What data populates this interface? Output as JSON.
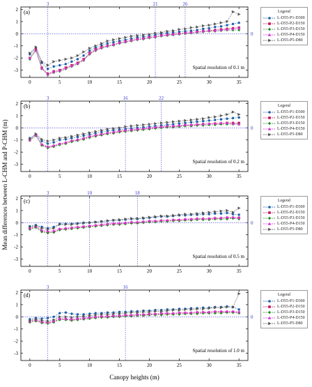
{
  "figure": {
    "ylabel": "Mean differences between L-CHM and P-CHM (m)",
    "xlabel": "Canopy heights (m)"
  },
  "colors": {
    "P1": "#1f5fa8",
    "P2": "#c4145a",
    "P3": "#228b22",
    "P4": "#d633d6",
    "P5": "#555555",
    "ref_line": "#3a3ad6"
  },
  "chart_data": [
    {
      "type": "line",
      "panel_label": "(a)",
      "annotation": "Spatial resolution of 0.1 m",
      "legend_title": "Legend",
      "vlines": [
        3,
        21,
        26
      ],
      "vline_labels": [
        "3",
        "21",
        "26"
      ],
      "hline_label": "0",
      "xlim": [
        -1.5,
        36.5
      ],
      "ylim": [
        -3.6,
        2.2
      ],
      "xticks": [
        0,
        5,
        10,
        15,
        20,
        25,
        30,
        35
      ],
      "yticks": [
        -3,
        -2,
        -1,
        0,
        1,
        2
      ],
      "x": [
        0,
        1,
        2,
        3,
        4,
        5,
        6,
        7,
        8,
        9,
        10,
        11,
        12,
        13,
        14,
        15,
        16,
        17,
        18,
        19,
        20,
        21,
        22,
        23,
        24,
        25,
        26,
        27,
        28,
        29,
        30,
        31,
        32,
        33,
        34,
        35
      ],
      "series": [
        {
          "name": "L-D55-P1-D300",
          "marker": "circle",
          "values": [
            -1.7,
            -1.2,
            -2.4,
            -2.9,
            -2.7,
            -2.6,
            -2.5,
            -2.3,
            -2.1,
            -1.8,
            -1.4,
            -1.15,
            -0.95,
            -0.8,
            -0.7,
            -0.6,
            -0.5,
            -0.4,
            -0.3,
            -0.25,
            -0.2,
            -0.1,
            0.0,
            0.05,
            0.1,
            0.15,
            0.2,
            0.25,
            0.3,
            0.4,
            0.45,
            0.55,
            0.6,
            0.7,
            0.8,
            0.9
          ]
        },
        {
          "name": "L-D55-P2-D150",
          "marker": "square",
          "values": [
            -2.0,
            -1.3,
            -2.8,
            -3.3,
            -3.1,
            -3.0,
            -2.8,
            -2.6,
            -2.4,
            -2.1,
            -1.6,
            -1.3,
            -1.1,
            -1.0,
            -0.9,
            -0.75,
            -0.65,
            -0.55,
            -0.45,
            -0.4,
            -0.3,
            -0.25,
            -0.15,
            -0.1,
            -0.05,
            0.0,
            0.05,
            0.1,
            0.15,
            0.2,
            0.25,
            0.3,
            0.35,
            0.4,
            0.45,
            0.5
          ]
        },
        {
          "name": "L-D55-P3-D150",
          "marker": "diamond",
          "values": [
            -2.1,
            -1.4,
            -2.9,
            -3.4,
            -3.2,
            -3.1,
            -2.9,
            -2.7,
            -2.5,
            -2.2,
            -1.7,
            -1.4,
            -1.2,
            -1.05,
            -0.95,
            -0.8,
            -0.7,
            -0.6,
            -0.5,
            -0.45,
            -0.35,
            -0.3,
            -0.2,
            -0.15,
            -0.1,
            -0.05,
            0.0,
            0.05,
            0.1,
            0.15,
            0.2,
            0.2,
            0.25,
            0.3,
            0.3,
            0.3
          ]
        },
        {
          "name": "L-D55-P4-D150",
          "marker": "triangle",
          "values": [
            -2.0,
            -1.35,
            -2.85,
            -3.35,
            -3.15,
            -3.05,
            -2.85,
            -2.65,
            -2.45,
            -2.15,
            -1.65,
            -1.35,
            -1.15,
            -1.0,
            -0.9,
            -0.75,
            -0.65,
            -0.55,
            -0.45,
            -0.4,
            -0.3,
            -0.25,
            -0.15,
            -0.1,
            -0.05,
            0.0,
            0.05,
            0.1,
            0.15,
            0.2,
            0.25,
            0.25,
            0.3,
            0.35,
            0.4,
            0.45
          ]
        },
        {
          "name": "L-D55-P5-D80",
          "marker": "tri-right",
          "values": [
            -1.6,
            -1.1,
            -2.3,
            -2.6,
            -2.3,
            -2.2,
            -2.1,
            -2.0,
            -1.8,
            -1.5,
            -1.2,
            -1.0,
            -0.8,
            -0.6,
            -0.5,
            -0.4,
            -0.3,
            -0.2,
            -0.15,
            -0.1,
            -0.05,
            0.05,
            0.1,
            0.2,
            0.25,
            0.35,
            0.4,
            0.5,
            0.55,
            0.65,
            0.7,
            0.8,
            0.9,
            1.0,
            1.8,
            1.6
          ]
        }
      ]
    },
    {
      "type": "line",
      "panel_label": "(b)",
      "annotation": "Spatial resolution of 0.2 m",
      "legend_title": "Legend",
      "vlines": [
        3,
        16,
        22
      ],
      "vline_labels": [
        "3",
        "16",
        "22"
      ],
      "hline_label": "0",
      "xlim": [
        -1.5,
        36.5
      ],
      "ylim": [
        -3.6,
        2.2
      ],
      "xticks": [
        0,
        5,
        10,
        15,
        20,
        25,
        30,
        35
      ],
      "yticks": [
        -3,
        -2,
        -1,
        0,
        1,
        2
      ],
      "x": [
        0,
        1,
        2,
        3,
        4,
        5,
        6,
        7,
        8,
        9,
        10,
        11,
        12,
        13,
        14,
        15,
        16,
        17,
        18,
        19,
        20,
        21,
        22,
        23,
        24,
        25,
        26,
        27,
        28,
        29,
        30,
        31,
        32,
        33,
        34,
        35
      ],
      "series": [
        {
          "name": "L-D55-P1-D300",
          "marker": "circle",
          "values": [
            -0.85,
            -0.55,
            -1.1,
            -1.3,
            -1.2,
            -1.0,
            -0.95,
            -0.85,
            -0.75,
            -0.65,
            -0.55,
            -0.45,
            -0.35,
            -0.25,
            -0.2,
            -0.15,
            -0.1,
            -0.05,
            0.0,
            0.05,
            0.1,
            0.15,
            0.2,
            0.25,
            0.3,
            0.35,
            0.4,
            0.45,
            0.5,
            0.55,
            0.6,
            0.65,
            0.7,
            0.75,
            0.8,
            0.85
          ]
        },
        {
          "name": "L-D55-P2-D150",
          "marker": "square",
          "values": [
            -1.0,
            -0.6,
            -1.4,
            -1.6,
            -1.5,
            -1.35,
            -1.25,
            -1.1,
            -1.0,
            -0.9,
            -0.75,
            -0.65,
            -0.55,
            -0.45,
            -0.4,
            -0.3,
            -0.25,
            -0.2,
            -0.15,
            -0.1,
            -0.05,
            0.0,
            0.05,
            0.1,
            0.1,
            0.15,
            0.2,
            0.2,
            0.25,
            0.3,
            0.3,
            0.35,
            0.35,
            0.4,
            0.4,
            0.4
          ]
        },
        {
          "name": "L-D55-P3-D150",
          "marker": "diamond",
          "values": [
            -1.05,
            -0.65,
            -1.45,
            -1.65,
            -1.55,
            -1.4,
            -1.3,
            -1.15,
            -1.05,
            -0.95,
            -0.8,
            -0.7,
            -0.6,
            -0.5,
            -0.45,
            -0.35,
            -0.3,
            -0.25,
            -0.2,
            -0.15,
            -0.1,
            -0.05,
            0.0,
            0.05,
            0.05,
            0.1,
            0.15,
            0.15,
            0.2,
            0.2,
            0.25,
            0.25,
            0.3,
            0.3,
            0.3,
            0.3
          ]
        },
        {
          "name": "L-D55-P4-D150",
          "marker": "triangle",
          "values": [
            -1.0,
            -0.6,
            -1.35,
            -1.55,
            -1.45,
            -1.3,
            -1.2,
            -1.05,
            -0.95,
            -0.85,
            -0.7,
            -0.6,
            -0.5,
            -0.4,
            -0.35,
            -0.25,
            -0.2,
            -0.15,
            -0.1,
            -0.05,
            0.0,
            0.05,
            0.1,
            0.15,
            0.15,
            0.2,
            0.25,
            0.25,
            0.3,
            0.3,
            0.35,
            0.35,
            0.4,
            0.4,
            0.35,
            0.3
          ]
        },
        {
          "name": "L-D55-P5-D80",
          "marker": "tri-right",
          "values": [
            -0.9,
            -0.5,
            -0.95,
            -1.1,
            -1.0,
            -0.85,
            -0.8,
            -0.7,
            -0.6,
            -0.5,
            -0.4,
            -0.3,
            -0.2,
            -0.1,
            -0.05,
            0.0,
            0.1,
            0.15,
            0.2,
            0.25,
            0.3,
            0.35,
            0.4,
            0.45,
            0.5,
            0.55,
            0.6,
            0.65,
            0.7,
            0.75,
            0.85,
            0.9,
            1.0,
            1.1,
            1.3,
            1.1
          ]
        }
      ]
    },
    {
      "type": "line",
      "panel_label": "(c)",
      "annotation": "Spatial resolution of 0.5 m",
      "legend_title": "Legend",
      "vlines": [
        3,
        10,
        18
      ],
      "vline_labels": [
        "3",
        "10",
        "18"
      ],
      "hline_label": "0",
      "xlim": [
        -1.5,
        36.5
      ],
      "ylim": [
        -3.6,
        2.2
      ],
      "xticks": [
        0,
        5,
        10,
        15,
        20,
        25,
        30,
        35
      ],
      "yticks": [
        -3,
        -2,
        -1,
        0,
        1,
        2
      ],
      "x": [
        0,
        1,
        2,
        3,
        4,
        5,
        6,
        7,
        8,
        9,
        10,
        11,
        12,
        13,
        14,
        15,
        16,
        17,
        18,
        19,
        20,
        21,
        22,
        23,
        24,
        25,
        26,
        27,
        28,
        29,
        30,
        31,
        32,
        33,
        34,
        35
      ],
      "series": [
        {
          "name": "L-D55-P1-D300",
          "marker": "circle",
          "values": [
            -0.3,
            -0.2,
            -0.35,
            -0.45,
            -0.35,
            -0.1,
            -0.1,
            -0.1,
            -0.05,
            0.0,
            0.0,
            0.05,
            0.1,
            0.15,
            0.2,
            0.2,
            0.25,
            0.3,
            0.3,
            0.35,
            0.4,
            0.45,
            0.5,
            0.5,
            0.55,
            0.6,
            0.6,
            0.65,
            0.65,
            0.7,
            0.7,
            0.75,
            0.75,
            0.8,
            0.7,
            0.65
          ]
        },
        {
          "name": "L-D55-P2-D150",
          "marker": "square",
          "values": [
            -0.5,
            -0.35,
            -0.7,
            -0.8,
            -0.75,
            -0.55,
            -0.5,
            -0.45,
            -0.4,
            -0.35,
            -0.3,
            -0.25,
            -0.2,
            -0.15,
            -0.1,
            -0.1,
            -0.05,
            0.0,
            0.0,
            0.05,
            0.1,
            0.1,
            0.15,
            0.15,
            0.2,
            0.2,
            0.25,
            0.25,
            0.3,
            0.3,
            0.3,
            0.35,
            0.35,
            0.4,
            0.4,
            0.4
          ]
        },
        {
          "name": "L-D55-P3-D150",
          "marker": "diamond",
          "values": [
            -0.55,
            -0.4,
            -0.75,
            -0.85,
            -0.8,
            -0.6,
            -0.55,
            -0.5,
            -0.45,
            -0.4,
            -0.35,
            -0.3,
            -0.25,
            -0.2,
            -0.15,
            -0.15,
            -0.1,
            -0.05,
            -0.05,
            0.0,
            0.05,
            0.05,
            0.1,
            0.1,
            0.15,
            0.15,
            0.2,
            0.2,
            0.25,
            0.25,
            0.25,
            0.3,
            0.3,
            0.3,
            0.35,
            0.3
          ]
        },
        {
          "name": "L-D55-P4-D150",
          "marker": "triangle",
          "values": [
            -0.45,
            -0.3,
            -0.6,
            -0.7,
            -0.65,
            -0.5,
            -0.45,
            -0.4,
            -0.35,
            -0.3,
            -0.25,
            -0.2,
            -0.15,
            -0.1,
            -0.05,
            -0.05,
            0.0,
            0.05,
            0.05,
            0.1,
            0.15,
            0.15,
            0.2,
            0.2,
            0.25,
            0.25,
            0.3,
            0.3,
            0.35,
            0.35,
            0.35,
            0.4,
            0.4,
            0.45,
            0.45,
            0.4
          ]
        },
        {
          "name": "L-D55-P5-D80",
          "marker": "tri-right",
          "values": [
            -0.35,
            -0.25,
            -0.45,
            -0.55,
            -0.45,
            -0.15,
            -0.15,
            -0.15,
            -0.1,
            -0.05,
            0.0,
            0.05,
            0.1,
            0.15,
            0.2,
            0.25,
            0.3,
            0.35,
            0.35,
            0.4,
            0.45,
            0.5,
            0.55,
            0.55,
            0.6,
            0.65,
            0.7,
            0.7,
            0.75,
            0.8,
            0.85,
            0.9,
            0.95,
            1.0,
            0.85,
            1.2
          ]
        }
      ]
    },
    {
      "type": "line",
      "panel_label": "(d)",
      "annotation": "Spatial resolution of 1.0 m",
      "legend_title": "Legend",
      "vlines": [
        3,
        16
      ],
      "vline_labels": [
        "3",
        "16"
      ],
      "hline_label": "0",
      "xlim": [
        -1.5,
        36.5
      ],
      "ylim": [
        -3.6,
        2.2
      ],
      "xticks": [
        0,
        5,
        10,
        15,
        20,
        25,
        30,
        35
      ],
      "yticks": [
        -3,
        -2,
        -1,
        0,
        1,
        2
      ],
      "x": [
        0,
        1,
        2,
        3,
        4,
        5,
        6,
        7,
        8,
        9,
        10,
        11,
        12,
        13,
        14,
        15,
        16,
        17,
        18,
        19,
        20,
        21,
        22,
        23,
        24,
        25,
        26,
        27,
        28,
        29,
        30,
        31,
        32,
        33,
        34,
        35
      ],
      "series": [
        {
          "name": "L-D55-P1-D300",
          "marker": "circle",
          "values": [
            -0.2,
            -0.1,
            -0.15,
            -0.1,
            0.0,
            0.3,
            0.35,
            0.25,
            0.2,
            0.2,
            0.25,
            0.3,
            0.3,
            0.35,
            0.35,
            0.4,
            0.4,
            0.45,
            0.45,
            0.5,
            0.5,
            0.55,
            0.55,
            0.6,
            0.6,
            0.65,
            0.65,
            0.7,
            0.7,
            0.75,
            0.75,
            0.8,
            0.8,
            0.85,
            0.8,
            0.6
          ]
        },
        {
          "name": "L-D55-P2-D150",
          "marker": "square",
          "values": [
            -0.4,
            -0.3,
            -0.45,
            -0.5,
            -0.4,
            -0.2,
            -0.2,
            -0.25,
            -0.2,
            -0.15,
            -0.1,
            -0.05,
            0.0,
            0.0,
            0.05,
            0.05,
            0.1,
            0.1,
            0.15,
            0.15,
            0.2,
            0.2,
            0.25,
            0.25,
            0.25,
            0.3,
            0.3,
            0.3,
            0.35,
            0.35,
            0.35,
            0.4,
            0.4,
            0.4,
            0.4,
            0.35
          ]
        },
        {
          "name": "L-D55-P3-D150",
          "marker": "diamond",
          "values": [
            -0.45,
            -0.35,
            -0.5,
            -0.55,
            -0.45,
            -0.25,
            -0.25,
            -0.3,
            -0.25,
            -0.2,
            -0.15,
            -0.1,
            -0.05,
            -0.05,
            0.0,
            0.0,
            0.05,
            0.05,
            0.1,
            0.1,
            0.15,
            0.15,
            0.15,
            0.2,
            0.2,
            0.2,
            0.25,
            0.25,
            0.25,
            0.3,
            0.3,
            0.3,
            0.3,
            0.35,
            0.35,
            0.3
          ]
        },
        {
          "name": "L-D55-P4-D150",
          "marker": "triangle",
          "values": [
            -0.35,
            -0.25,
            -0.4,
            -0.45,
            -0.35,
            -0.15,
            -0.15,
            -0.2,
            -0.15,
            -0.1,
            -0.05,
            0.0,
            0.05,
            0.05,
            0.1,
            0.1,
            0.15,
            0.15,
            0.2,
            0.2,
            0.25,
            0.25,
            0.3,
            0.3,
            0.3,
            0.35,
            0.35,
            0.35,
            0.4,
            0.4,
            0.4,
            0.45,
            0.45,
            0.45,
            0.45,
            0.4
          ]
        },
        {
          "name": "L-D55-P5-D80",
          "marker": "tri-right",
          "values": [
            -0.3,
            -0.2,
            -0.3,
            -0.35,
            -0.25,
            0.0,
            0.0,
            -0.05,
            0.0,
            0.05,
            0.1,
            0.15,
            0.2,
            0.2,
            0.25,
            0.25,
            0.3,
            0.35,
            0.35,
            0.4,
            0.4,
            0.45,
            0.45,
            0.5,
            0.55,
            0.55,
            0.6,
            0.6,
            0.65,
            0.65,
            0.7,
            0.75,
            0.75,
            0.8,
            0.8,
            1.9
          ]
        }
      ]
    }
  ]
}
